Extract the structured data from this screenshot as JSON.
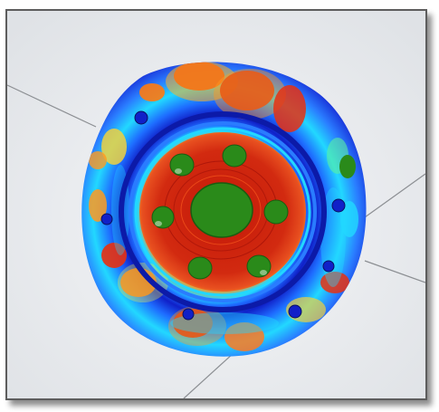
{
  "app": {
    "view": "fea-stress-contour-3d-viewport"
  },
  "model": {
    "part": "wheel-hub-disc",
    "bolt_hole_count": 6,
    "colormap": [
      "#1020c8",
      "#1e6cff",
      "#22d8ff",
      "#5cf0a0",
      "#f0f040",
      "#ff9a20",
      "#e83010",
      "#c01808",
      "#2a8a1a"
    ]
  }
}
